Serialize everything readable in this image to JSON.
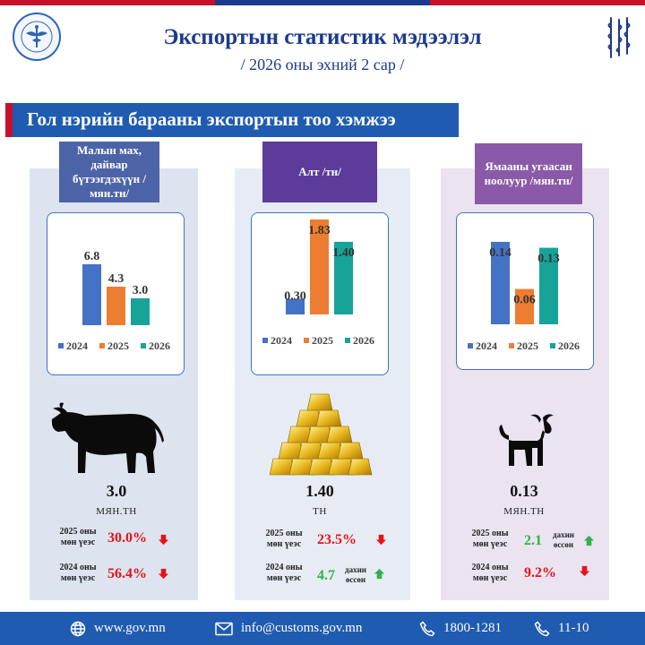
{
  "header": {
    "title": "Экспортын статистик мэдээлэл",
    "subtitle": "/ 2026 оны эхний 2 сар /",
    "banner": "Гол нэрийн барааны экспортын тоо хэмжээ"
  },
  "colors": {
    "y2024": "#4472c4",
    "y2025": "#ed7d31",
    "y2026": "#17a398",
    "down": "#e3141b",
    "up": "#2fb34a",
    "brand": "#1f5bb0"
  },
  "legend": [
    "2024",
    "2025",
    "2026"
  ],
  "chart_data": [
    {
      "type": "bar",
      "title": "Малын мах, дайвар бүтээгдэхүүн /мян.тн/",
      "categories": [
        "2024",
        "2025",
        "2026"
      ],
      "values": [
        6.8,
        4.3,
        3.0
      ],
      "labels": [
        "6.8",
        "4.3",
        "3.0"
      ]
    },
    {
      "type": "bar",
      "title": "Алт /тн/",
      "categories": [
        "2024",
        "2025",
        "2026"
      ],
      "values": [
        0.3,
        1.83,
        1.4
      ],
      "labels": [
        "0.30",
        "1.83",
        "1.40"
      ]
    },
    {
      "type": "bar",
      "title": "Ямааны угаасан ноолуур /мян.тн/",
      "categories": [
        "2024",
        "2025",
        "2026"
      ],
      "values": [
        0.14,
        0.06,
        0.13
      ],
      "labels": [
        "0.14",
        "0.06",
        "0.13"
      ]
    }
  ],
  "panels": [
    {
      "category": "Малын мах, дайвар бүтээгдэхүүн /мян.тн/",
      "icon": "cow-icon",
      "value": "3.0",
      "unit": "МЯН.ТН",
      "cmp1": {
        "label_line1": "2025 оны",
        "label_line2": "мөн үеэс",
        "value": "30.0%",
        "direction": "down"
      },
      "cmp2": {
        "label_line1": "2024 оны",
        "label_line2": "мөн үеэс",
        "value": "56.4%",
        "direction": "down"
      }
    },
    {
      "category": "Алт /тн/",
      "icon": "gold-bars-icon",
      "value": "1.40",
      "unit": "ТН",
      "cmp1": {
        "label_line1": "2025 оны",
        "label_line2": "мөн үеэс",
        "value": "23.5%",
        "direction": "down"
      },
      "cmp2": {
        "label_line1": "2024 оны",
        "label_line2": "мөн үеэс",
        "value": "4.7",
        "direction": "up",
        "note_line1": "дахин",
        "note_line2": "өссөн"
      }
    },
    {
      "category": "Ямааны угаасан ноолуур /мян.тн/",
      "icon": "goat-icon",
      "value": "0.13",
      "unit": "МЯН.ТН",
      "cmp1": {
        "label_line1": "2025 оны",
        "label_line2": "мөн үеэс",
        "value": "2.1",
        "direction": "up",
        "note_line1": "дахин",
        "note_line2": "өссөн"
      },
      "cmp2": {
        "label_line1": "2024 оны",
        "label_line2": "мөн үеэс",
        "value": "9.2%",
        "direction": "down"
      }
    }
  ],
  "footer": {
    "website": "www.gov.mn",
    "email": "info@customs.gov.mn",
    "phone": "1800-1281",
    "hotline": "11-10"
  }
}
